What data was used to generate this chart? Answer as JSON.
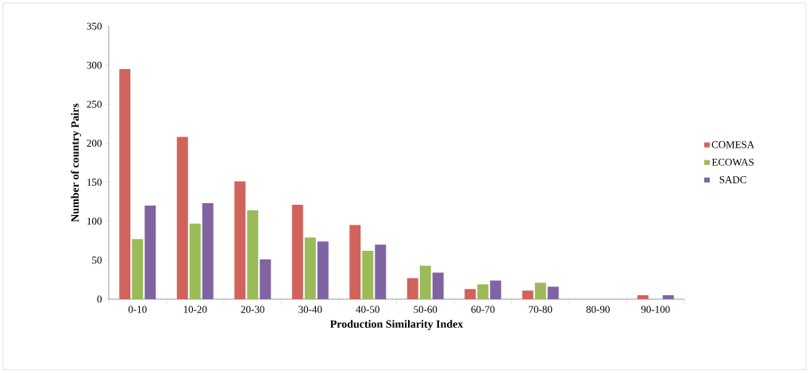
{
  "chart_data": {
    "type": "bar",
    "xlabel": "Production Similarity Index",
    "ylabel": "Number of country Pairs",
    "categories": [
      "0-10",
      "10-20",
      "20-30",
      "30-40",
      "40-50",
      "50-60",
      "60-70",
      "70-80",
      "80-90",
      "90-100"
    ],
    "series": [
      {
        "name": "COMESA",
        "color": "#d0635b",
        "values": [
          295,
          208,
          151,
          121,
          95,
          27,
          13,
          11,
          0,
          5
        ]
      },
      {
        "name": "ECOWAS",
        "color": "#9bbb59",
        "values": [
          77,
          97,
          114,
          79,
          62,
          43,
          19,
          21,
          0,
          0
        ]
      },
      {
        "name": "SADC",
        "color": "#8064a2",
        "values": [
          120,
          123,
          51,
          74,
          70,
          34,
          24,
          16,
          0,
          5
        ]
      }
    ],
    "ylim": [
      0,
      350
    ],
    "yticks": [
      0,
      50,
      100,
      150,
      200,
      250,
      300,
      350
    ],
    "grid": false,
    "legend": "right"
  }
}
